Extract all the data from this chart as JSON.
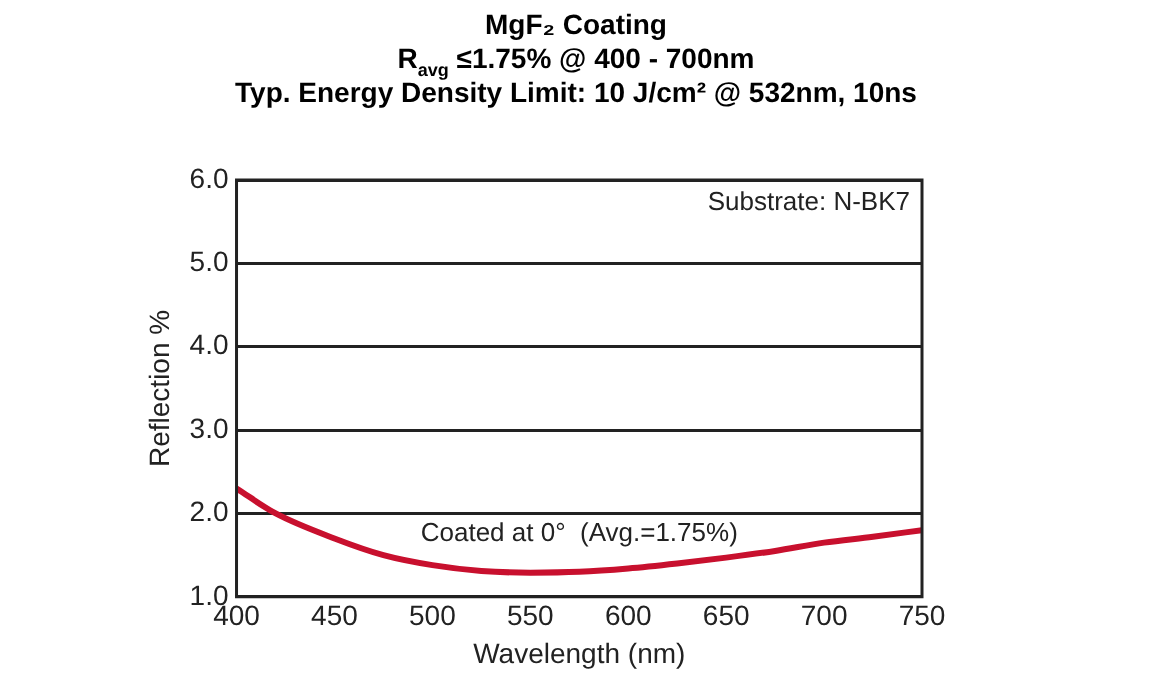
{
  "chart_data": {
    "type": "line",
    "title": "MgF₂ Coating",
    "subtitle": "R$_{avg}$ ≤1.75% @ 400 - 700nm\nTyp. Energy Density Limit: 10 J/cm² @ 532nm, 10ns",
    "xlabel": "Wavelength (nm)",
    "ylabel": "Reflection %",
    "x": [
      400,
      420,
      450,
      475,
      500,
      525,
      550,
      575,
      600,
      625,
      650,
      675,
      700,
      725,
      750
    ],
    "series": [
      {
        "color": "#c8102e",
        "values": [
          2.3,
          2.0,
          1.7,
          1.5,
          1.38,
          1.31,
          1.29,
          1.3,
          1.34,
          1.4,
          1.47,
          1.55,
          1.65,
          1.72,
          1.8
        ]
      }
    ],
    "xlim": [
      400,
      750
    ],
    "xticks": [
      400,
      450,
      500,
      550,
      600,
      650,
      700,
      750
    ],
    "ylim": [
      1,
      6
    ],
    "yticks": [
      {
        "value": 1,
        "label": "1.0"
      },
      {
        "value": 2,
        "label": "2.0"
      },
      {
        "value": 3,
        "label": "3.0"
      },
      {
        "value": 4,
        "label": "4.0"
      },
      {
        "value": 5,
        "label": "5.0"
      },
      {
        "value": 6,
        "label": "6.0"
      }
    ],
    "grid": "y",
    "legend": false,
    "marker": "none",
    "line_style": "solid",
    "annotations": [
      "Substrate: N-BK7",
      "Coated at 0°  (Avg.=1.75%)"
    ]
  }
}
